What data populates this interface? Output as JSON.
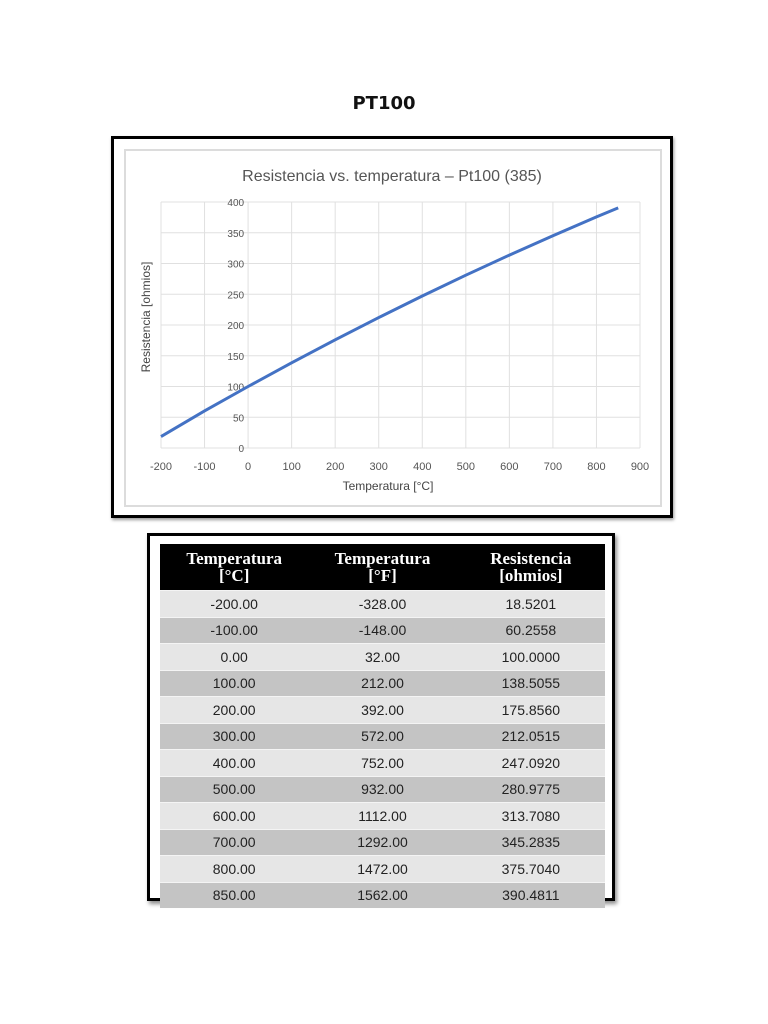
{
  "page": {
    "title": "PT100"
  },
  "chart_data": {
    "type": "line",
    "title": "Resistencia vs. temperatura – Pt100 (385)",
    "xlabel": "Temperatura [°C]",
    "ylabel": "Resistencia [ohmios]",
    "xlim": [
      -200,
      900
    ],
    "ylim": [
      0,
      400
    ],
    "x_ticks": [
      -200,
      -100,
      0,
      100,
      200,
      300,
      400,
      500,
      600,
      700,
      800,
      900
    ],
    "y_ticks": [
      0,
      50,
      100,
      150,
      200,
      250,
      300,
      350,
      400
    ],
    "grid": true,
    "legend": "none",
    "series": [
      {
        "name": "Pt100 (385)",
        "color": "#4472c4",
        "x": [
          -200,
          -100,
          0,
          100,
          200,
          300,
          400,
          500,
          600,
          700,
          800,
          850
        ],
        "y": [
          18.5201,
          60.2558,
          100.0,
          138.5055,
          175.856,
          212.0515,
          247.092,
          280.9775,
          313.708,
          345.2835,
          375.704,
          390.4811
        ]
      }
    ]
  },
  "table": {
    "headers": [
      {
        "line1": "Temperatura",
        "line2": "[°C]"
      },
      {
        "line1": "Temperatura",
        "line2": "[°F]"
      },
      {
        "line1": "Resistencia",
        "line2": "[ohmios]"
      }
    ],
    "rows": [
      [
        "-200.00",
        "-328.00",
        "18.5201"
      ],
      [
        "-100.00",
        "-148.00",
        "60.2558"
      ],
      [
        "0.00",
        "32.00",
        "100.0000"
      ],
      [
        "100.00",
        "212.00",
        "138.5055"
      ],
      [
        "200.00",
        "392.00",
        "175.8560"
      ],
      [
        "300.00",
        "572.00",
        "212.0515"
      ],
      [
        "400.00",
        "752.00",
        "247.0920"
      ],
      [
        "500.00",
        "932.00",
        "280.9775"
      ],
      [
        "600.00",
        "1112.00",
        "313.7080"
      ],
      [
        "700.00",
        "1292.00",
        "345.2835"
      ],
      [
        "800.00",
        "1472.00",
        "375.7040"
      ],
      [
        "850.00",
        "1562.00",
        "390.4811"
      ]
    ]
  }
}
